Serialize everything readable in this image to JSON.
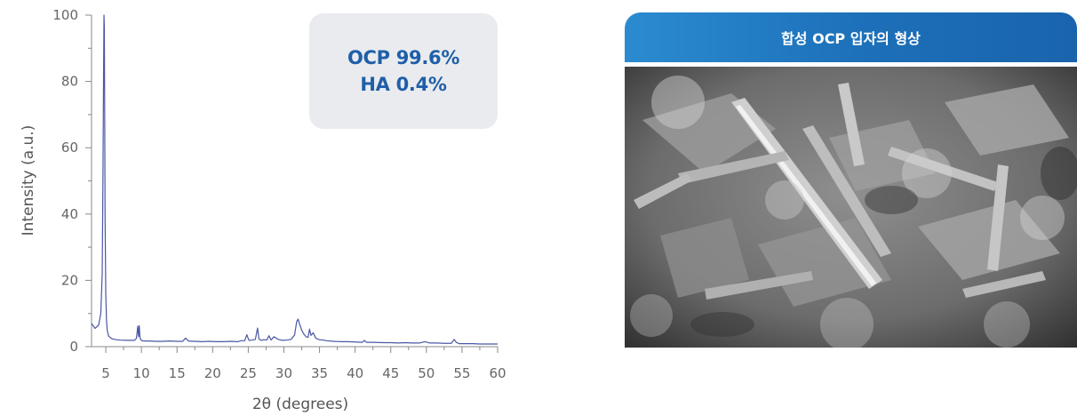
{
  "chart_data": {
    "type": "line",
    "xlabel": "2θ (degrees)",
    "ylabel": "Intensity (a.u.)",
    "xlim": [
      3,
      60
    ],
    "ylim": [
      0,
      100
    ],
    "x_ticks": [
      5,
      10,
      15,
      20,
      25,
      30,
      35,
      40,
      45,
      50,
      55,
      60
    ],
    "y_ticks": [
      0,
      20,
      40,
      60,
      80,
      100
    ],
    "grid": false,
    "series": [
      {
        "color": "#4a57a4",
        "x": [
          3,
          3.5,
          4.0,
          4.3,
          4.5,
          4.6,
          4.7,
          4.75,
          4.8,
          4.85,
          4.9,
          5.0,
          5.1,
          5.2,
          5.4,
          5.7,
          6.0,
          6.5,
          7,
          8,
          9,
          9.3,
          9.5,
          9.6,
          9.7,
          9.8,
          9.9,
          10.0,
          10.1,
          10.3,
          10.6,
          11,
          12,
          13,
          14,
          15,
          15.8,
          16.2,
          16.6,
          17.5,
          18.5,
          19.5,
          20.5,
          21.5,
          22.5,
          23.5,
          24.0,
          24.5,
          24.8,
          25.1,
          25.6,
          26.0,
          26.3,
          26.5,
          26.8,
          27.2,
          27.6,
          27.9,
          28.2,
          28.6,
          29.2,
          29.8,
          30.4,
          31.0,
          31.5,
          31.8,
          32.0,
          32.2,
          32.5,
          32.8,
          33.1,
          33.4,
          33.6,
          33.8,
          34.1,
          34.5,
          35.0,
          35.5,
          36.0,
          37.0,
          38.0,
          39.0,
          40.0,
          41.0,
          41.3,
          41.6,
          42.5,
          44.0,
          45.0,
          46.0,
          47.0,
          48.0,
          49.0,
          49.8,
          50.5,
          51.5,
          52.5,
          53.5,
          53.9,
          54.2,
          54.6,
          55.5,
          56.5,
          57.5,
          58.5,
          59.5,
          60
        ],
        "values": [
          7,
          5.5,
          6.5,
          10,
          22,
          50,
          85,
          100,
          96,
          70,
          40,
          16,
          8,
          5,
          3.2,
          2.6,
          2.3,
          2.1,
          2.0,
          1.9,
          1.9,
          2.5,
          6.2,
          3.0,
          6.3,
          2.8,
          2.2,
          1.9,
          1.8,
          1.7,
          1.7,
          1.7,
          1.6,
          1.6,
          1.7,
          1.6,
          1.6,
          2.6,
          1.7,
          1.6,
          1.5,
          1.6,
          1.5,
          1.5,
          1.6,
          1.5,
          1.8,
          1.8,
          3.6,
          1.9,
          2.0,
          2.2,
          5.6,
          2.3,
          1.9,
          2.1,
          2.0,
          3.3,
          2.0,
          3.0,
          2.2,
          1.9,
          2.0,
          2.2,
          3.5,
          7.6,
          8.3,
          6.8,
          5.0,
          3.8,
          3.0,
          2.8,
          5.3,
          3.4,
          4.2,
          2.5,
          2.1,
          2.0,
          1.8,
          1.6,
          1.5,
          1.5,
          1.4,
          1.3,
          1.9,
          1.3,
          1.3,
          1.2,
          1.2,
          1.1,
          1.2,
          1.1,
          1.1,
          1.5,
          1.1,
          1.1,
          1.0,
          1.0,
          2.2,
          1.3,
          0.9,
          0.9,
          0.9,
          0.8,
          0.8,
          0.8,
          0.8
        ]
      }
    ]
  },
  "result_box": {
    "line1": "OCP 99.6%",
    "line2": "HA 0.4%"
  },
  "sem_panel": {
    "title": "합성 OCP 입자의 형상"
  },
  "colors": {
    "series": "#4a57a4",
    "result_text": "#1f5fa8",
    "result_bg": "#e9ebee",
    "header_blue": "#1c6fb8"
  }
}
